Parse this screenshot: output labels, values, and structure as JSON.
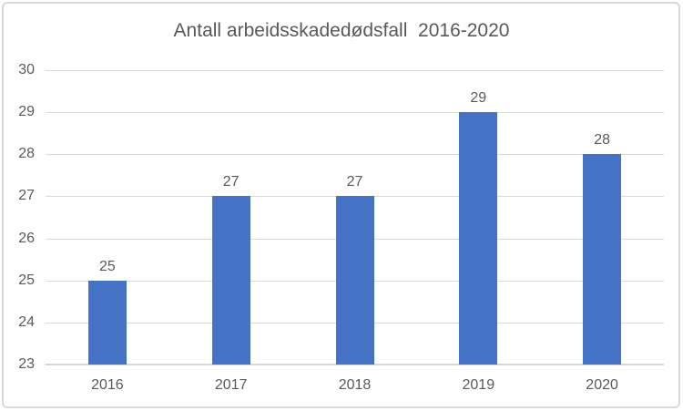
{
  "chart_data": {
    "type": "bar",
    "title": "Antall arbeidsskadedødsfall  2016-2020",
    "categories": [
      "2016",
      "2017",
      "2018",
      "2019",
      "2020"
    ],
    "values": [
      25,
      27,
      27,
      29,
      28
    ],
    "data_labels": [
      "25",
      "27",
      "27",
      "29",
      "28"
    ],
    "xlabel": "",
    "ylabel": "",
    "ylim": [
      23,
      30
    ],
    "ytick_step": 1,
    "ytick_labels": [
      "23",
      "24",
      "25",
      "26",
      "27",
      "28",
      "29",
      "30"
    ],
    "grid": true,
    "legend": false,
    "colors": {
      "bar": "#4472C4",
      "text": "#595959",
      "gridline": "#d9d9d9",
      "axis_line": "#d6d6d6",
      "frame_border": "#d9d9d9",
      "background": "#ffffff"
    }
  }
}
